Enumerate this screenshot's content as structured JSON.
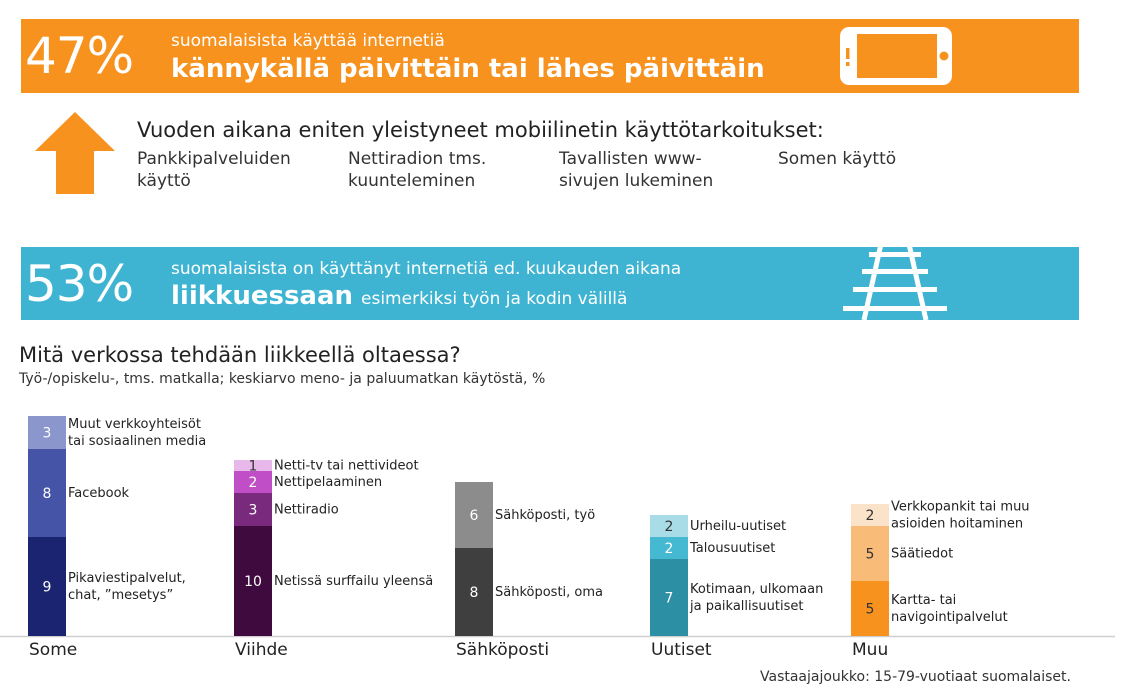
{
  "banner_top": {
    "percent": "47%",
    "line1": "suomalaisista käyttää internetiä",
    "line2": "kännykällä päivittäin tai lähes päivittäin",
    "color": "#f7921e"
  },
  "rising": {
    "heading": "Vuoden aikana eniten yleistyneet mobiilinetin käyttötarkoitukset:",
    "items": [
      "Pankkipalveluiden\nkäyttö",
      "Nettiradion tms.\nkuunteleminen",
      "Tavallisten www-\nsivujen lukeminen",
      "Somen käyttö"
    ]
  },
  "banner_mid": {
    "percent": "53%",
    "line1": "suomalaisista on käyttänyt internetiä ed. kuukauden aikana",
    "line2_bold": "liikkuessaan",
    "line2_rest": "esimerkiksi työn ja kodin välillä",
    "color": "#3fb4d2"
  },
  "chart_data": {
    "type": "bar",
    "stacked": true,
    "title": "Mitä verkossa tehdään liikkeellä oltaessa?",
    "subtitle": "Työ-/opiskelu-, tms. matkalla; keskiarvo meno- ja paluumatkan käytöstä, %",
    "categories": [
      "Some",
      "Viihde",
      "Sähköposti",
      "Uutiset",
      "Muu"
    ],
    "stacks": [
      [
        {
          "label": "Pikaviestipalvelut,\nchat, ”mesetys”",
          "value": 9,
          "color": "#1b2470"
        },
        {
          "label": "Facebook",
          "value": 8,
          "color": "#4654a8"
        },
        {
          "label": "Muut verkkoyhteisöt\ntai sosiaalinen media",
          "value": 3,
          "color": "#8b96cd"
        }
      ],
      [
        {
          "label": "Netissä surffailu yleensä",
          "value": 10,
          "color": "#3f0a3e"
        },
        {
          "label": "Nettiradio",
          "value": 3,
          "color": "#7a2a7c"
        },
        {
          "label": "Nettipelaaminen",
          "value": 2,
          "color": "#c04ec6"
        },
        {
          "label": "Netti-tv tai nettivideot",
          "value": 1,
          "color": "#e8b8ea"
        }
      ],
      [
        {
          "label": "Sähköposti, oma",
          "value": 8,
          "color": "#3f3f3f"
        },
        {
          "label": "Sähköposti, työ",
          "value": 6,
          "color": "#8c8c8c"
        }
      ],
      [
        {
          "label": "Kotimaan, ulkomaan\nja paikallisuutiset",
          "value": 7,
          "color": "#2d8fa3"
        },
        {
          "label": "Talousuutiset",
          "value": 2,
          "color": "#45b8d2"
        },
        {
          "label": "Urheilu-uutiset",
          "value": 2,
          "color": "#a8dde8"
        }
      ],
      [
        {
          "label": "Kartta- tai\nnavigointipalvelut",
          "value": 5,
          "color": "#f7921e"
        },
        {
          "label": "Säätiedot",
          "value": 5,
          "color": "#f9bb78"
        },
        {
          "label": "Verkkopankit tai muu\nasioiden hoitaminen",
          "value": 2,
          "color": "#fbe3c9"
        }
      ]
    ],
    "ylim": [
      0,
      20
    ],
    "grid": false
  },
  "source": "Vastaajajoukko: 15-79-vuotiaat suomalaiset."
}
